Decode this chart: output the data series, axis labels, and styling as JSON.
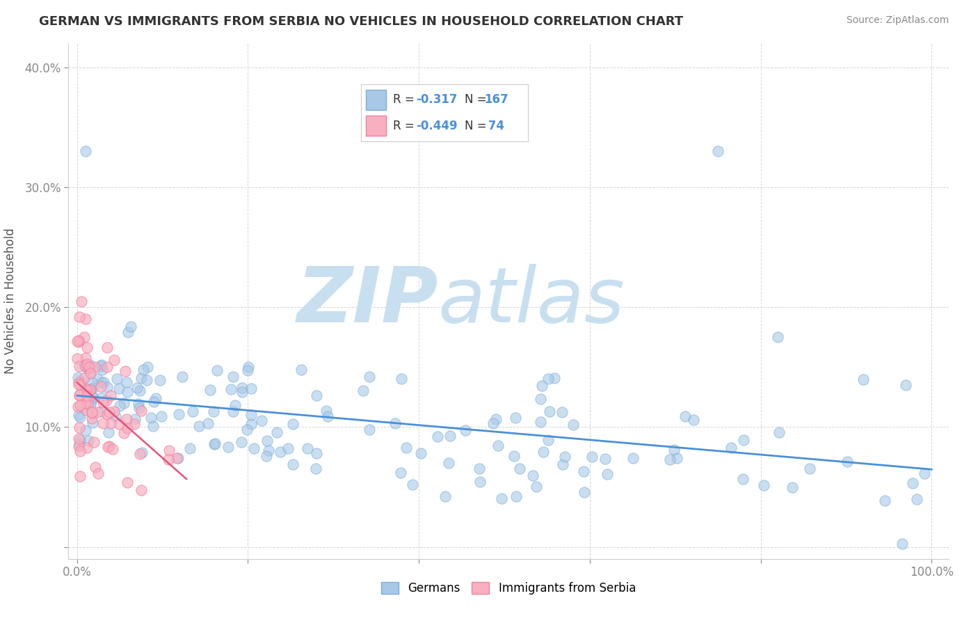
{
  "title": "GERMAN VS IMMIGRANTS FROM SERBIA NO VEHICLES IN HOUSEHOLD CORRELATION CHART",
  "source": "Source: ZipAtlas.com",
  "ylabel": "No Vehicles in Household",
  "legend_german": "Germans",
  "legend_serbia": "Immigrants from Serbia",
  "r_german": -0.317,
  "n_german": 167,
  "r_serbia": -0.449,
  "n_serbia": 74,
  "blue_fill": "#a8c8e8",
  "pink_fill": "#f8b0c0",
  "blue_edge": "#7aafd4",
  "pink_edge": "#f080a0",
  "blue_line_color": "#4a90d9",
  "pink_line_color": "#e8507a",
  "watermark_zip_color": "#c8dff0",
  "watermark_atlas_color": "#c8dff0",
  "background_color": "#ffffff",
  "grid_color": "#cccccc",
  "title_color": "#333333",
  "axis_label_color": "#4a90d9",
  "seed": 42
}
